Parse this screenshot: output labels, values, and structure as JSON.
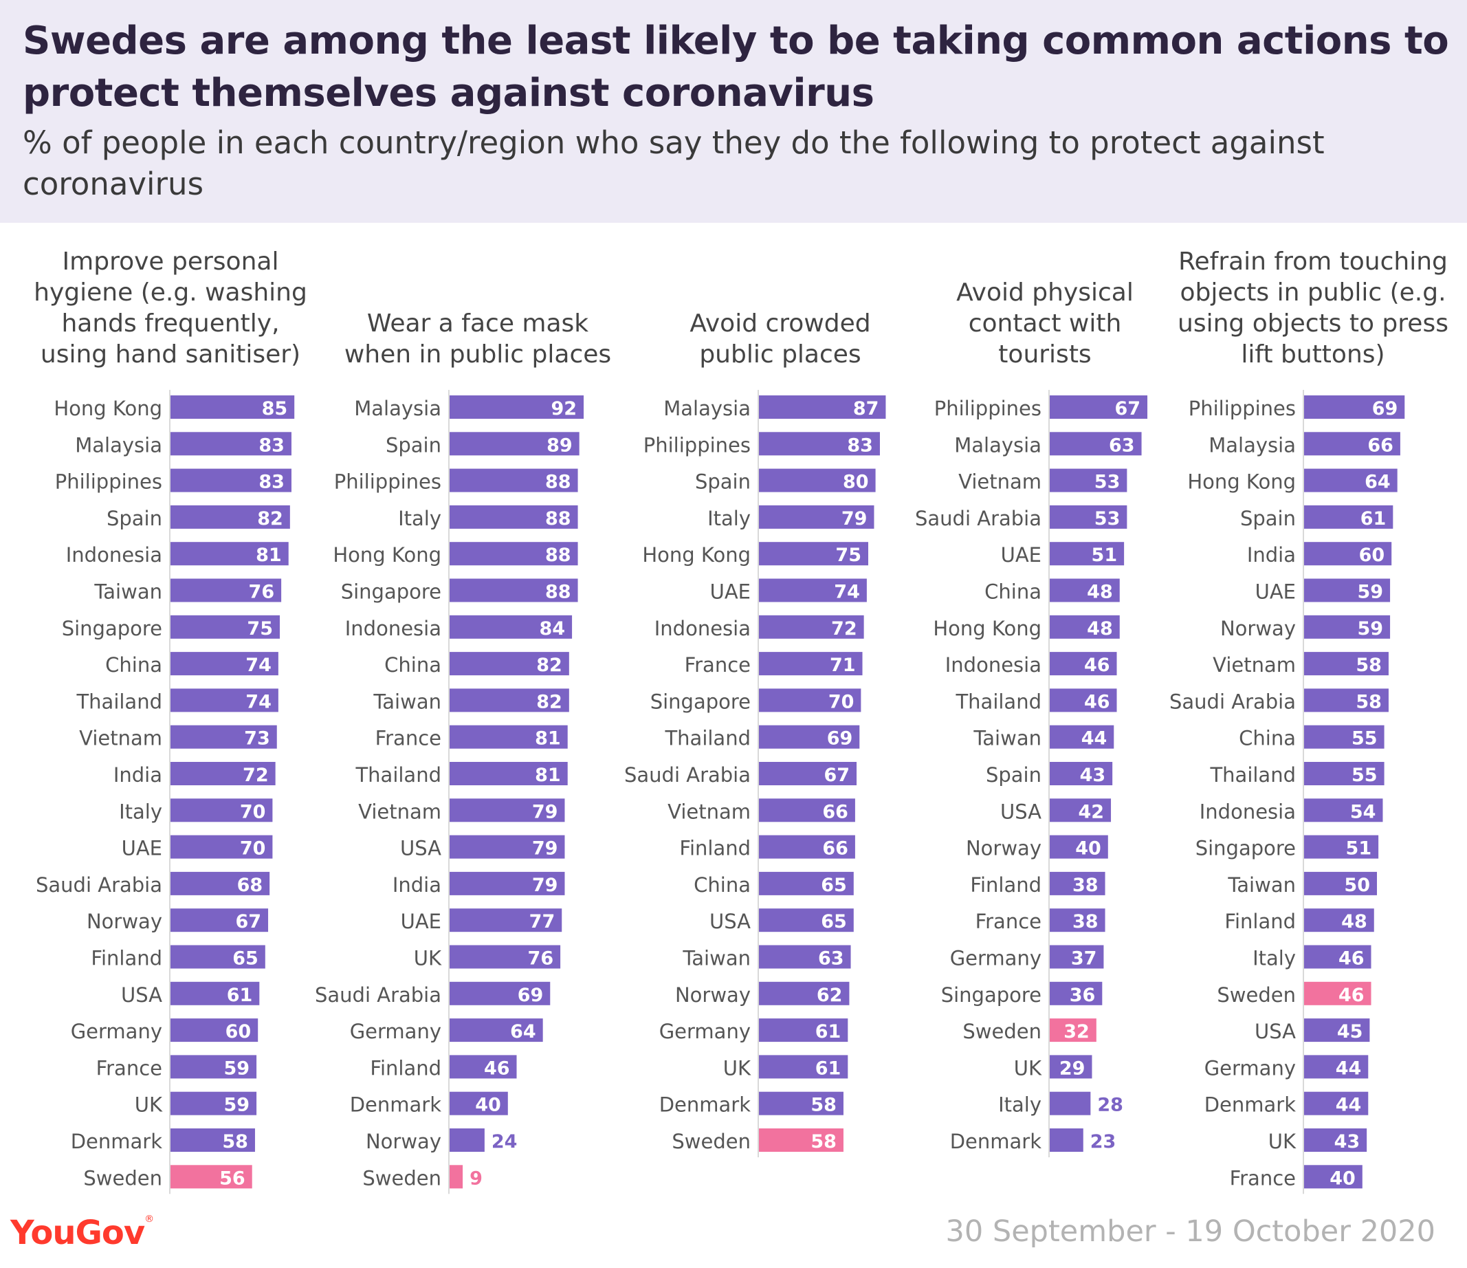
{
  "title": "Swedes are among the least likely to be taking common actions to protect themselves against coronavirus",
  "subtitle": "% of people in each country/region who say they do the following to protect against coronavirus",
  "colors": {
    "bar": "#7b63c4",
    "highlight": "#f2729e",
    "bar_text": "#ffffff",
    "label_text": "#555555",
    "axis_line": "#d9d9d9",
    "header_bg": "#edeaf5"
  },
  "highlight_category": "Sweden",
  "chart_data": [
    {
      "type": "bar",
      "orientation": "horizontal",
      "title": "Improve personal hygiene (e.g. washing hands frequently, using hand sanitiser)",
      "categories": [
        "Hong Kong",
        "Malaysia",
        "Philippines",
        "Spain",
        "Indonesia",
        "Taiwan",
        "Singapore",
        "China",
        "Thailand",
        "Vietnam",
        "India",
        "Italy",
        "UAE",
        "Saudi Arabia",
        "Norway",
        "Finland",
        "USA",
        "Germany",
        "France",
        "UK",
        "Denmark",
        "Sweden"
      ],
      "values": [
        85,
        83,
        83,
        82,
        81,
        76,
        75,
        74,
        74,
        73,
        72,
        70,
        70,
        68,
        67,
        65,
        61,
        60,
        59,
        59,
        58,
        56
      ]
    },
    {
      "type": "bar",
      "orientation": "horizontal",
      "title": "Wear a face mask when in public places",
      "categories": [
        "Malaysia",
        "Spain",
        "Philippines",
        "Italy",
        "Hong Kong",
        "Singapore",
        "Indonesia",
        "China",
        "Taiwan",
        "France",
        "Thailand",
        "Vietnam",
        "USA",
        "India",
        "UAE",
        "UK",
        "Saudi Arabia",
        "Germany",
        "Finland",
        "Denmark",
        "Norway",
        "Sweden"
      ],
      "values": [
        92,
        89,
        88,
        88,
        88,
        88,
        84,
        82,
        82,
        81,
        81,
        79,
        79,
        79,
        77,
        76,
        69,
        64,
        46,
        40,
        24,
        9
      ]
    },
    {
      "type": "bar",
      "orientation": "horizontal",
      "title": "Avoid crowded public places",
      "categories": [
        "Malaysia",
        "Philippines",
        "Spain",
        "Italy",
        "Hong Kong",
        "UAE",
        "Indonesia",
        "France",
        "Singapore",
        "Thailand",
        "Saudi Arabia",
        "Vietnam",
        "Finland",
        "China",
        "USA",
        "Taiwan",
        "Norway",
        "Germany",
        "UK",
        "Denmark",
        "Sweden"
      ],
      "values": [
        87,
        83,
        80,
        79,
        75,
        74,
        72,
        71,
        70,
        69,
        67,
        66,
        66,
        65,
        65,
        63,
        62,
        61,
        61,
        58,
        58
      ]
    },
    {
      "type": "bar",
      "orientation": "horizontal",
      "title": "Avoid physical contact with tourists",
      "categories": [
        "Philippines",
        "Malaysia",
        "Vietnam",
        "Saudi Arabia",
        "UAE",
        "China",
        "Hong Kong",
        "Indonesia",
        "Thailand",
        "Taiwan",
        "Spain",
        "USA",
        "Norway",
        "Finland",
        "France",
        "Germany",
        "Singapore",
        "Sweden",
        "UK",
        "Italy",
        "Denmark"
      ],
      "values": [
        67,
        63,
        53,
        53,
        51,
        48,
        48,
        46,
        46,
        44,
        43,
        42,
        40,
        38,
        38,
        37,
        36,
        32,
        29,
        28,
        23
      ]
    },
    {
      "type": "bar",
      "orientation": "horizontal",
      "title": "Refrain from touching objects in public (e.g. using objects to press lift buttons)",
      "categories": [
        "Philippines",
        "Malaysia",
        "Hong Kong",
        "Spain",
        "India",
        "UAE",
        "Norway",
        "Vietnam",
        "Saudi Arabia",
        "China",
        "Thailand",
        "Indonesia",
        "Singapore",
        "Taiwan",
        "Finland",
        "Italy",
        "Sweden",
        "USA",
        "Germany",
        "Denmark",
        "UK",
        "France"
      ],
      "values": [
        69,
        66,
        64,
        61,
        60,
        59,
        59,
        58,
        58,
        55,
        55,
        54,
        51,
        50,
        48,
        46,
        46,
        45,
        44,
        44,
        43,
        40
      ]
    }
  ],
  "source": {
    "logo": "YouGov",
    "date_range": "30 September - 19 October 2020"
  }
}
